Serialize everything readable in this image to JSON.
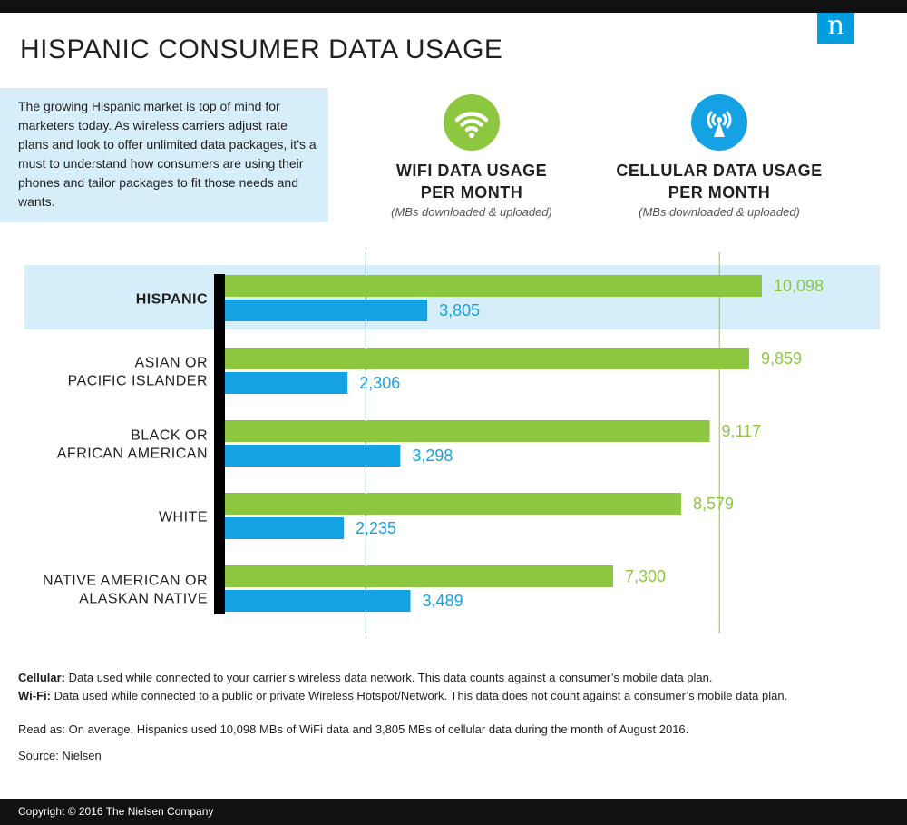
{
  "header": {
    "title": "HISPANIC CONSUMER DATA USAGE",
    "logo_letter": "n",
    "logo_color": "#009de0"
  },
  "intro": "The growing Hispanic market is top of mind for marketers today. As wireless carriers adjust rate plans and look to offer unlimited data packages, it’s a must to understand how consumers are using their phones and tailor packages to fit those needs and wants.",
  "legend": {
    "wifi": {
      "icon": "wifi-icon",
      "title_line1": "WIFI DATA USAGE",
      "title_line2": "PER MONTH",
      "subtitle": "(MBs downloaded & uploaded)",
      "color": "#8dc63f"
    },
    "cellular": {
      "icon": "cellular-tower-icon",
      "title_line1": "CELLULAR DATA USAGE",
      "title_line2": "PER MONTH",
      "subtitle": "(MBs downloaded & uploaded)",
      "color": "#14a2e4"
    }
  },
  "chart_data": {
    "type": "bar",
    "orientation": "horizontal",
    "categories": [
      [
        "HISPANIC"
      ],
      [
        "ASIAN OR",
        "PACIFIC ISLANDER"
      ],
      [
        "BLACK OR",
        "AFRICAN AMERICAN"
      ],
      [
        "WHITE"
      ],
      [
        "NATIVE AMERICAN OR",
        "ALASKAN NATIVE"
      ]
    ],
    "highlighted_category": 0,
    "series": [
      {
        "name": "WIFI DATA USAGE PER MONTH",
        "color": "#8dc63f",
        "values": [
          10098,
          9859,
          9117,
          8579,
          7300
        ],
        "labels": [
          "10,098",
          "9,859",
          "9,117",
          "8,579",
          "7,300"
        ]
      },
      {
        "name": "CELLULAR DATA USAGE PER MONTH",
        "color": "#14a2e4",
        "values": [
          3805,
          2306,
          3298,
          2235,
          3489
        ],
        "labels": [
          "3,805",
          "2,306",
          "3,298",
          "2,235",
          "3,489"
        ]
      }
    ],
    "reference_lines": [
      {
        "value": 2650,
        "color": "#14a2e4"
      },
      {
        "value": 9300,
        "color": "#8dc63f"
      }
    ],
    "xlim": [
      0,
      10098
    ],
    "highlight_color": "#d6eefa",
    "axis_color": "#000000"
  },
  "notes": {
    "cellular_label": "Cellular:",
    "cellular_text": " Data used while connected to your carrier’s wireless data network. This data counts against a consumer’s mobile data plan.",
    "wifi_label": "Wi-Fi:",
    "wifi_text": " Data used while connected to a public or private Wireless Hotspot/Network. This data does not count against a consumer’s mobile data plan.",
    "read_as": "Read as: On average, Hispanics used 10,098 MBs of WiFi data and 3,805 MBs of cellular data during the month of August 2016.",
    "source": "Source: Nielsen"
  },
  "footer": {
    "copyright": "Copyright © 2016 The Nielsen Company"
  }
}
